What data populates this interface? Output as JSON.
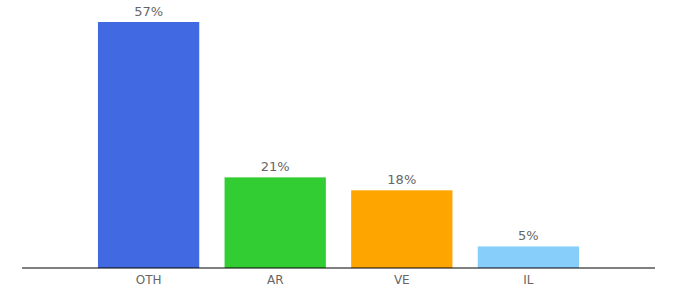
{
  "chart_data": {
    "type": "bar",
    "categories": [
      "OTH",
      "AR",
      "VE",
      "IL"
    ],
    "values": [
      57,
      21,
      18,
      5
    ],
    "value_labels": [
      "57%",
      "21%",
      "18%",
      "5%"
    ],
    "colors": [
      "#4169e1",
      "#32cd32",
      "#ffa500",
      "#87cefa"
    ],
    "ylim": [
      0,
      57
    ],
    "data_labels": true,
    "tick_labels": "x"
  }
}
